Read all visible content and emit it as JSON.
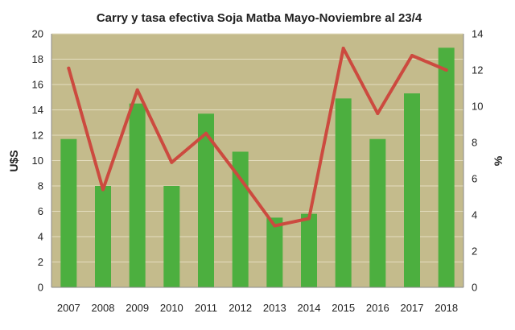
{
  "chart_data": {
    "type": "bar",
    "title": "Carry y tasa efectiva Soja Matba Mayo-Noviembre al 23/4",
    "ylabel": "U$S",
    "y2label": "%",
    "ylim": [
      0,
      20
    ],
    "y2lim": [
      0,
      14
    ],
    "yticks": [
      0,
      2,
      4,
      6,
      8,
      10,
      12,
      14,
      16,
      18,
      20
    ],
    "y2ticks": [
      0,
      2,
      4,
      6,
      8,
      10,
      12,
      14
    ],
    "categories": [
      "2007",
      "2008",
      "2009",
      "2010",
      "2011",
      "2012",
      "2013",
      "2014",
      "2015",
      "2016",
      "2017",
      "2018"
    ],
    "series": [
      {
        "type": "bar",
        "axis": "left",
        "values": [
          11.7,
          8.0,
          14.5,
          8.0,
          13.7,
          10.7,
          5.5,
          5.8,
          14.9,
          11.7,
          15.3,
          18.9
        ]
      },
      {
        "type": "line",
        "axis": "right",
        "values": [
          12.1,
          5.4,
          10.9,
          6.9,
          8.5,
          6.0,
          3.4,
          3.8,
          13.2,
          9.6,
          12.8,
          12.0
        ]
      }
    ],
    "grid": true,
    "colors": {
      "plot_background": "#c4bb8c",
      "bar": "#4caf3f",
      "line": "#cc4a3f",
      "grid": "#e4ddc0",
      "axis": "#8a8a8a"
    }
  }
}
